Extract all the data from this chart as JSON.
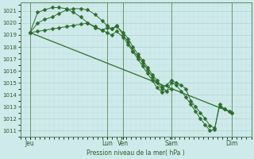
{
  "xlabel": "Pression niveau de la mer( hPa )",
  "ylim": [
    1010.5,
    1021.7
  ],
  "yticks": [
    1011,
    1012,
    1013,
    1014,
    1015,
    1016,
    1017,
    1018,
    1019,
    1020,
    1021
  ],
  "bg_color": "#ceeaea",
  "grid_major_color": "#b0d4d4",
  "grid_minor_color": "#c0e0e0",
  "line_color": "#2d6e2d",
  "xlim": [
    0,
    240
  ],
  "xtick_labels": [
    "Jeu",
    "Lun",
    "Ven",
    "Sam",
    "Dim"
  ],
  "xtick_positions": [
    10,
    90,
    107,
    157,
    220
  ],
  "vline_positions": [
    10,
    90,
    107,
    157,
    220
  ],
  "series1_x": [
    10,
    18,
    25,
    33,
    40,
    48,
    55,
    63,
    70,
    78,
    85,
    90,
    95,
    100,
    107,
    112,
    117,
    122,
    127,
    132,
    137,
    142,
    147,
    152,
    157,
    162,
    167,
    172,
    177,
    182,
    187,
    192,
    197,
    202,
    207,
    212,
    217,
    220
  ],
  "series1_y": [
    1019.2,
    1020.9,
    1021.1,
    1021.3,
    1021.3,
    1021.2,
    1020.9,
    1020.5,
    1020.0,
    1019.6,
    1019.4,
    1019.6,
    1019.5,
    1019.8,
    1019.0,
    1018.4,
    1017.7,
    1017.2,
    1016.7,
    1016.1,
    1015.5,
    1015.0,
    1014.5,
    1014.8,
    1015.2,
    1015.0,
    1014.8,
    1014.5,
    1013.5,
    1013.0,
    1012.5,
    1012.0,
    1011.4,
    1011.2,
    1013.0,
    1012.8,
    1012.6,
    1012.5
  ],
  "series2_x": [
    10,
    18,
    25,
    33,
    40,
    48,
    55,
    63,
    70,
    78,
    85,
    90,
    95,
    100,
    107,
    112,
    117,
    122,
    127,
    132,
    137,
    142,
    147,
    152,
    157,
    162,
    167,
    172,
    177,
    182,
    187,
    192,
    197,
    202,
    207,
    212,
    217,
    220
  ],
  "series2_y": [
    1019.2,
    1020.0,
    1020.3,
    1020.5,
    1020.8,
    1021.1,
    1021.2,
    1021.2,
    1021.1,
    1020.7,
    1020.2,
    1019.8,
    1019.5,
    1019.7,
    1019.2,
    1018.7,
    1018.0,
    1017.4,
    1016.9,
    1016.3,
    1015.7,
    1015.2,
    1014.7,
    1014.3,
    1015.0,
    1014.8,
    1014.3,
    1013.8,
    1013.2,
    1012.6,
    1012.0,
    1011.5,
    1011.0,
    1011.1,
    1013.2,
    1012.8,
    1012.6,
    1012.5
  ],
  "series3_x": [
    10,
    18,
    25,
    33,
    40,
    48,
    55,
    63,
    70,
    78,
    85,
    90,
    95,
    100,
    107,
    112,
    117,
    122,
    127,
    132,
    137,
    142,
    147,
    157
  ],
  "series3_y": [
    1019.2,
    1019.3,
    1019.4,
    1019.5,
    1019.6,
    1019.7,
    1019.8,
    1019.9,
    1020.0,
    1019.7,
    1019.4,
    1019.2,
    1019.0,
    1019.3,
    1018.8,
    1018.2,
    1017.6,
    1017.0,
    1016.4,
    1015.8,
    1015.2,
    1014.6,
    1014.2,
    1014.5
  ],
  "trend_x": [
    10,
    220
  ],
  "trend_y": [
    1019.2,
    1012.5
  ]
}
